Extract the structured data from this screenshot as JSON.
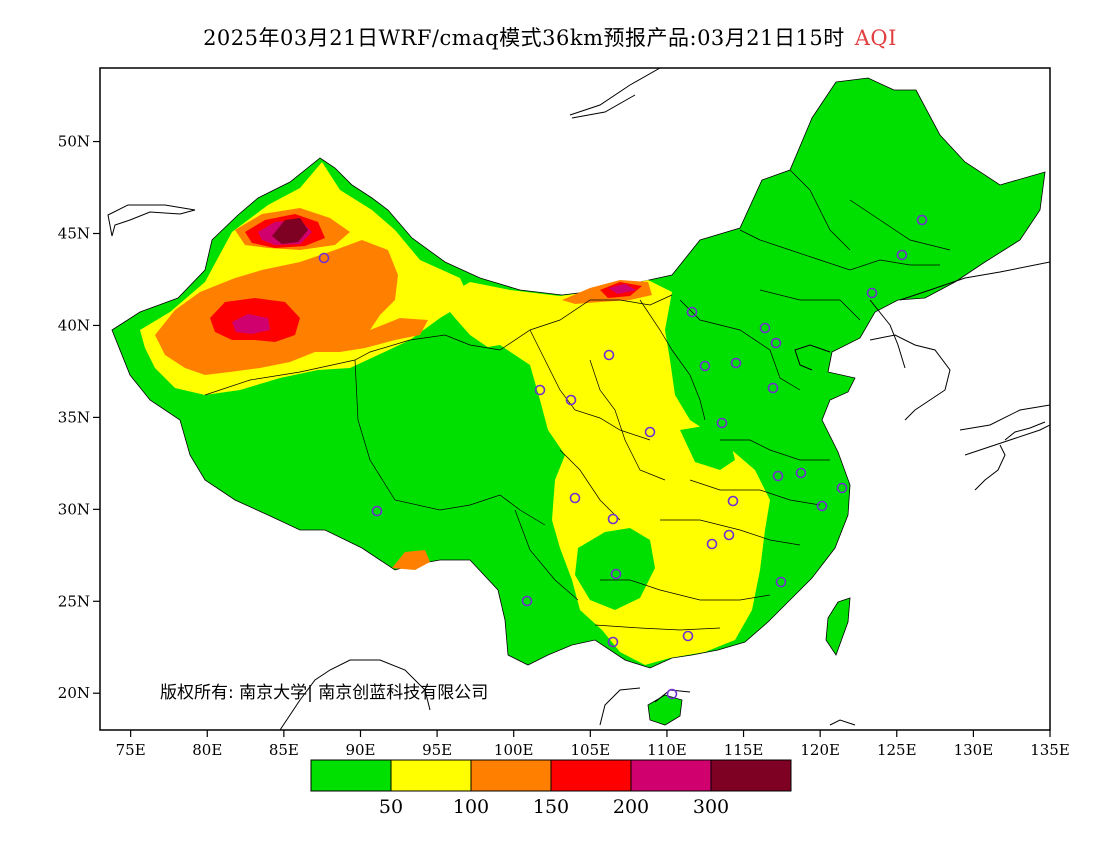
{
  "title": {
    "main": "2025年03月21日WRF/cmaq模式36km预报产品:03月21日15时",
    "variable": "AQI"
  },
  "copyright": "版权所有: 南京大学| 南京创蓝科技有限公司",
  "axes": {
    "x_ticks": [
      "75E",
      "80E",
      "85E",
      "90E",
      "95E",
      "100E",
      "105E",
      "110E",
      "115E",
      "120E",
      "125E",
      "130E",
      "135E"
    ],
    "y_ticks": [
      "20N",
      "25N",
      "30N",
      "35N",
      "40N",
      "45N",
      "50N"
    ],
    "lon_range": [
      73,
      135
    ],
    "lat_range": [
      18,
      54
    ]
  },
  "legend": {
    "colors": [
      "#00e000",
      "#ffff00",
      "#ff8000",
      "#ff0000",
      "#d0006e",
      "#7e0023"
    ],
    "labels": [
      "50",
      "100",
      "150",
      "200",
      "300"
    ]
  }
}
